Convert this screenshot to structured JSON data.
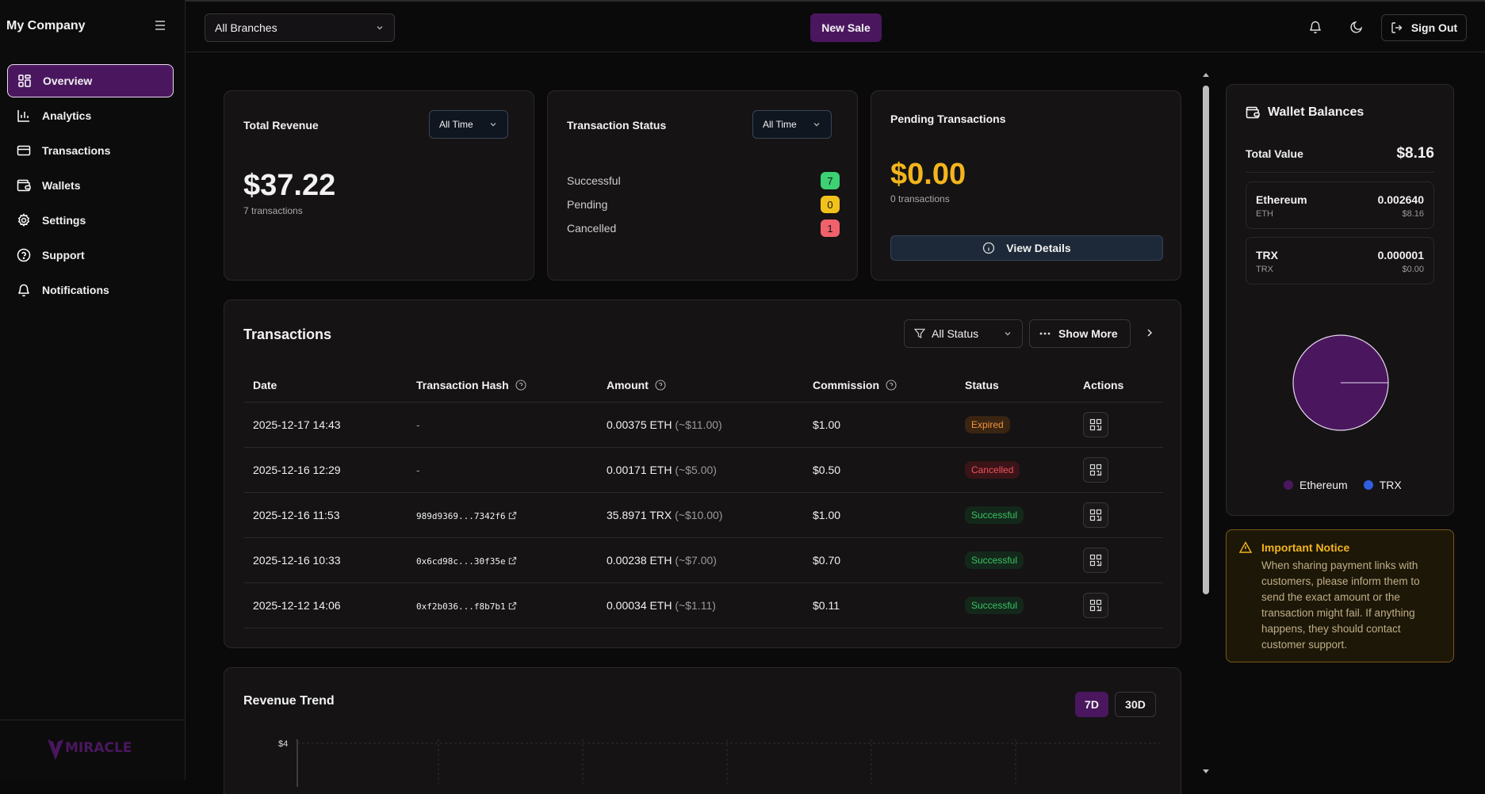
{
  "sidebar": {
    "company": "My Company",
    "items": [
      {
        "label": "Overview"
      },
      {
        "label": "Analytics"
      },
      {
        "label": "Transactions"
      },
      {
        "label": "Wallets"
      },
      {
        "label": "Settings"
      },
      {
        "label": "Support"
      },
      {
        "label": "Notifications"
      }
    ],
    "logo_text": "MIRACLE"
  },
  "topbar": {
    "branch": "All Branches",
    "new_sale": "New Sale",
    "sign_out": "Sign Out"
  },
  "revenue": {
    "title": "Total Revenue",
    "range": "All Time",
    "value": "$37.22",
    "count": "7 transactions"
  },
  "tx_status": {
    "title": "Transaction Status",
    "range": "All Time",
    "rows": [
      {
        "label": "Successful",
        "count": "7",
        "color": "#3cd172"
      },
      {
        "label": "Pending",
        "count": "0",
        "color": "#f2c21c"
      },
      {
        "label": "Cancelled",
        "count": "1",
        "color": "#f0616b"
      }
    ]
  },
  "pending": {
    "title": "Pending Transactions",
    "value": "$0.00",
    "count": "0 transactions",
    "view_details": "View Details"
  },
  "transactions": {
    "title": "Transactions",
    "filter": "All Status",
    "show_more": "Show More",
    "headers": [
      "Date",
      "Transaction Hash",
      "Amount",
      "Commission",
      "Status",
      "Actions"
    ],
    "rows": [
      {
        "date": "2025-12-17 14:43",
        "hash": "-",
        "amount": "0.00375 ETH",
        "usd": "(~$11.00)",
        "commission": "$1.00",
        "status": "Expired",
        "status_class": "st-expired"
      },
      {
        "date": "2025-12-16 12:29",
        "hash": "-",
        "amount": "0.00171 ETH",
        "usd": "(~$5.00)",
        "commission": "$0.50",
        "status": "Cancelled",
        "status_class": "st-cancelled"
      },
      {
        "date": "2025-12-16 11:53",
        "hash": "989d9369...7342f6",
        "amount": "35.8971 TRX",
        "usd": "(~$10.00)",
        "commission": "$1.00",
        "status": "Successful",
        "status_class": "st-success"
      },
      {
        "date": "2025-12-16 10:33",
        "hash": "0x6cd98c...30f35e",
        "amount": "0.00238 ETH",
        "usd": "(~$7.00)",
        "commission": "$0.70",
        "status": "Successful",
        "status_class": "st-success"
      },
      {
        "date": "2025-12-12 14:06",
        "hash": "0xf2b036...f8b7b1",
        "amount": "0.00034 ETH",
        "usd": "(~$1.11)",
        "commission": "$0.11",
        "status": "Successful",
        "status_class": "st-success"
      }
    ]
  },
  "revenue_trend": {
    "title": "Revenue Trend",
    "ranges": [
      "7D",
      "30D"
    ],
    "y_tick": "$4"
  },
  "wallet": {
    "title": "Wallet Balances",
    "total_label": "Total Value",
    "total_value": "$8.16",
    "rows": [
      {
        "name": "Ethereum",
        "symbol": "ETH",
        "amount": "0.002640",
        "usd": "$8.16"
      },
      {
        "name": "TRX",
        "symbol": "TRX",
        "amount": "0.000001",
        "usd": "$0.00"
      }
    ],
    "legend": [
      {
        "name": "Ethereum",
        "color": "#4a175f"
      },
      {
        "name": "TRX",
        "color": "#2f5fe0"
      }
    ]
  },
  "notice": {
    "title": "Important Notice",
    "text": "When sharing payment links with customers, please inform them to send the exact amount or the transaction might fail. If anything happens, they should contact customer support."
  }
}
